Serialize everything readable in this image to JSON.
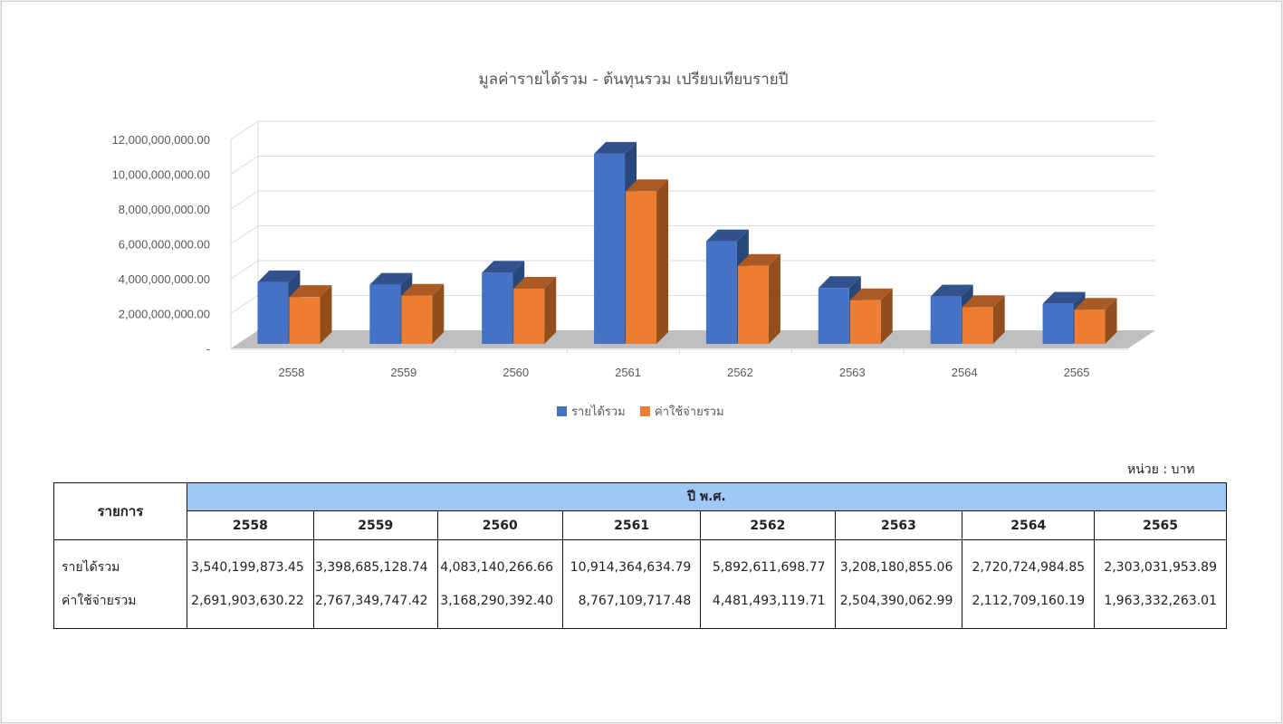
{
  "chart_data": {
    "type": "bar",
    "title": "มูลค่ารายได้รวม - ต้นทุนรวม เปรียบเทียบรายปี",
    "categories": [
      "2558",
      "2559",
      "2560",
      "2561",
      "2562",
      "2563",
      "2564",
      "2565"
    ],
    "series": [
      {
        "name": "รายได้รวม",
        "color": "#4472c4",
        "values": [
          3540199873.45,
          3398685128.74,
          4083140266.66,
          10914364634.79,
          5892611698.77,
          3208180855.06,
          2720724984.85,
          2303031953.89
        ]
      },
      {
        "name": "ค่าใช้จ่ายรวม",
        "color": "#ed7d31",
        "values": [
          2691903630.22,
          2767349747.42,
          3168290392.4,
          8767109717.48,
          4481493119.71,
          2504390062.99,
          2112709160.19,
          1963332263.01
        ]
      }
    ],
    "ylim": [
      0,
      12000000000
    ],
    "yticks": [
      0,
      2000000000,
      4000000000,
      6000000000,
      8000000000,
      10000000000,
      12000000000
    ],
    "ytick_labels": [
      "-",
      "2,000,000,000.00",
      "4,000,000,000.00",
      "6,000,000,000.00",
      "8,000,000,000.00",
      "10,000,000,000.00",
      "12,000,000,000.00"
    ],
    "grid": true,
    "legend": "bottom",
    "style": "3d-clustered"
  },
  "table": {
    "unit_label": "หน่วย : บาท",
    "item_header": "รายการ",
    "group_header": "ปี พ.ศ.",
    "years": [
      "2558",
      "2559",
      "2560",
      "2561",
      "2562",
      "2563",
      "2564",
      "2565"
    ],
    "rows": [
      {
        "label": "รายได้รวม",
        "values": [
          "3,540,199,873.45",
          "3,398,685,128.74",
          "4,083,140,266.66",
          "10,914,364,634.79",
          "5,892,611,698.77",
          "3,208,180,855.06",
          "2,720,724,984.85",
          "2,303,031,953.89"
        ]
      },
      {
        "label": "ค่าใช้จ่ายรวม",
        "values": [
          "2,691,903,630.22",
          "2,767,349,747.42",
          "3,168,290,392.40",
          "8,767,109,717.48",
          "4,481,493,119.71",
          "2,504,390,062.99",
          "2,112,709,160.19",
          "1,963,332,263.01"
        ]
      }
    ]
  }
}
